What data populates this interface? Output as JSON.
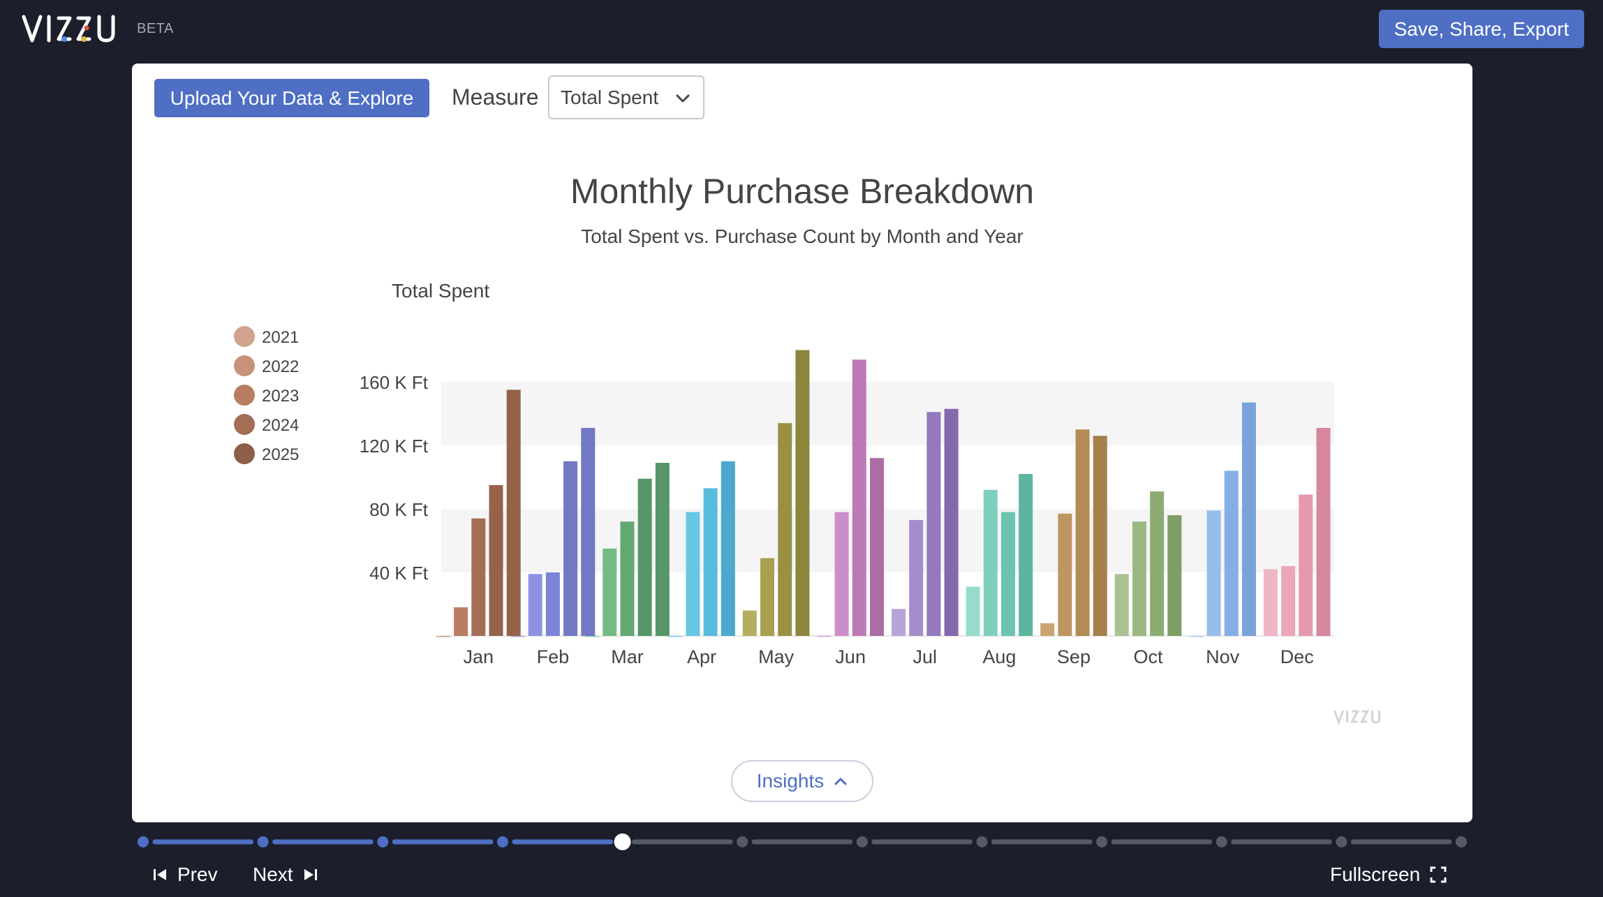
{
  "app": {
    "logo_text": "VIZZU",
    "beta_label": "BETA",
    "save_label": "Save, Share, Export"
  },
  "toolbar": {
    "upload_label": "Upload Your Data & Explore",
    "measure_label": "Measure",
    "measure_value": "Total Spent"
  },
  "insights_label": "Insights",
  "nav": {
    "prev_label": "Prev",
    "next_label": "Next",
    "fullscreen_label": "Fullscreen"
  },
  "progress": {
    "steps": 12,
    "current_step": 5
  },
  "watermark_text": "VIZZU",
  "colors": {
    "accent": "#4e6fc4",
    "background": "#1c1f2b"
  },
  "chart_data": {
    "type": "bar",
    "title": "Monthly Purchase Breakdown",
    "subtitle": "Total Spent vs. Purchase Count by Month and Year",
    "ylabel": "Total Spent",
    "xlabel": "",
    "ylim": [
      0,
      160000
    ],
    "yticks": [
      {
        "value": 40000,
        "label": "40 K Ft"
      },
      {
        "value": 80000,
        "label": "80 K Ft"
      },
      {
        "value": 120000,
        "label": "120 K Ft"
      },
      {
        "value": 160000,
        "label": "160 K Ft"
      }
    ],
    "grid": "alternating bands",
    "legend_position": "left",
    "legend": [
      {
        "name": "2021",
        "color": "#d2a38f"
      },
      {
        "name": "2022",
        "color": "#c79279"
      },
      {
        "name": "2023",
        "color": "#b87d62"
      },
      {
        "name": "2024",
        "color": "#a46d56"
      },
      {
        "name": "2025",
        "color": "#8f5e48"
      }
    ],
    "categories": [
      "Jan",
      "Feb",
      "Mar",
      "Apr",
      "May",
      "Jun",
      "Jul",
      "Aug",
      "Sep",
      "Oct",
      "Nov",
      "Dec"
    ],
    "series": [
      {
        "name": "2021",
        "values": [
          0,
          0,
          0,
          0,
          16000,
          0,
          17000,
          31000,
          8000,
          39000,
          0,
          42000
        ]
      },
      {
        "name": "2022",
        "values": [
          18000,
          39000,
          55000,
          78000,
          49000,
          78000,
          73000,
          92000,
          77000,
          72000,
          79000,
          44000
        ]
      },
      {
        "name": "2023",
        "values": [
          74000,
          40000,
          72000,
          93000,
          134000,
          174000,
          141000,
          78000,
          130000,
          91000,
          104000,
          89000
        ]
      },
      {
        "name": "2024",
        "values": [
          95000,
          110000,
          99000,
          110000,
          180000,
          112000,
          143000,
          102000,
          126000,
          76000,
          147000,
          131000
        ]
      },
      {
        "name": "2025",
        "values": [
          155000,
          131000,
          109000,
          null,
          null,
          null,
          null,
          null,
          null,
          null,
          null,
          null
        ]
      }
    ],
    "month_colors": [
      [
        "#c99a87",
        "#b87d62",
        "#a46d56",
        "#946349"
      ],
      [
        "#a2a7ea",
        "#8d93e2",
        "#7d84d8",
        "#7278c4"
      ],
      [
        "#8ccc96",
        "#74bb83",
        "#63a872",
        "#55976a"
      ],
      [
        "#80cfe8",
        "#68c7e3",
        "#57bcdc",
        "#4aa9cc"
      ],
      [
        "#b5ad62",
        "#a89f4f",
        "#9a9044",
        "#8d853c"
      ],
      [
        "#d9a4d6",
        "#cc8ec9",
        "#bd79b5",
        "#ad6ca4"
      ],
      [
        "#b6a4d9",
        "#a58dcc",
        "#9479be",
        "#8568ae"
      ],
      [
        "#97dccb",
        "#7ed0bd",
        "#6cc3af",
        "#5db59f"
      ],
      [
        "#cba474",
        "#bf9660",
        "#b38b54",
        "#a5804b"
      ],
      [
        "#a9c291",
        "#9bb882",
        "#8dac73",
        "#7f9e66"
      ],
      [
        "#abcbf0",
        "#97bdec",
        "#84afe5",
        "#7aa2db"
      ],
      [
        "#f0b6c4",
        "#eba7b8",
        "#e599ad",
        "#d6879c"
      ]
    ]
  }
}
